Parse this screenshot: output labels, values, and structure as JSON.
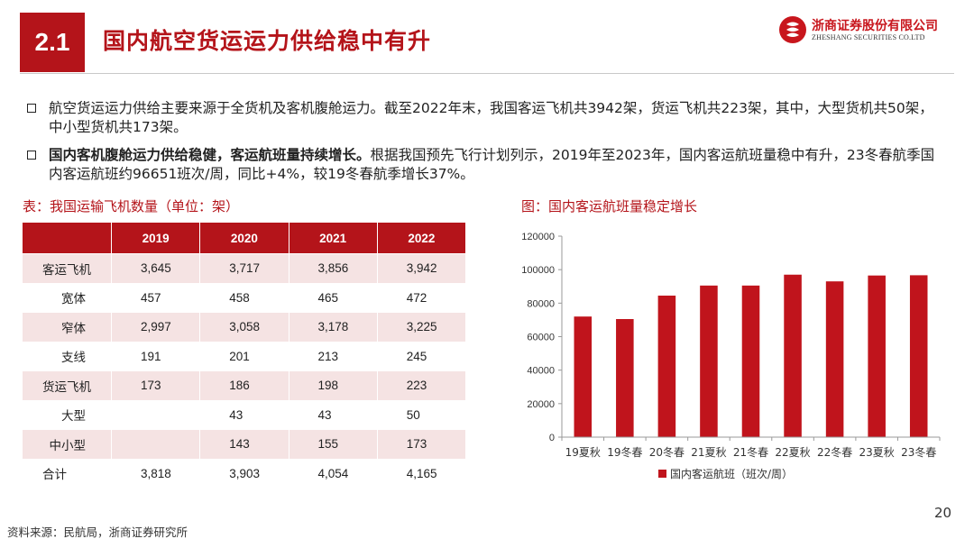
{
  "section_number": "2.1",
  "title": "国内航空货运运力供给稳中有升",
  "logo": {
    "cn": "浙商证券股份有限公司",
    "en": "ZHESHANG SECURITIES CO.LTD"
  },
  "bullets": [
    {
      "bold": "",
      "text": "航空货运运力供给主要来源于全货机及客机腹舱运力。截至2022年末，我国客运飞机共3942架，货运飞机共223架，其中，大型货机共50架，中小型货机共173架。"
    },
    {
      "bold": "国内客机腹舱运力供给稳健，客运航班量持续增长。",
      "text": "根据我国预先飞行计划列示，2019年至2023年，国内客运航班量稳中有升，23冬春航季国内客运航班约96651班次/周，同比+4%，较19冬春航季增长37%。"
    }
  ],
  "table": {
    "caption": "表：我国运输飞机数量（单位：架）",
    "headers": [
      "",
      "2019",
      "2020",
      "2021",
      "2022"
    ],
    "rows": [
      {
        "label": "客运飞机",
        "type": "main",
        "values": [
          "3,645",
          "3,717",
          "3,856",
          "3,942"
        ]
      },
      {
        "label": "宽体",
        "type": "sub",
        "values": [
          "457",
          "458",
          "465",
          "472"
        ]
      },
      {
        "label": "窄体",
        "type": "sub",
        "values": [
          "2,997",
          "3,058",
          "3,178",
          "3,225"
        ]
      },
      {
        "label": "支线",
        "type": "sub",
        "values": [
          "191",
          "201",
          "213",
          "245"
        ]
      },
      {
        "label": "货运飞机",
        "type": "main",
        "values": [
          "173",
          "186",
          "198",
          "223"
        ]
      },
      {
        "label": "大型",
        "type": "sub",
        "values": [
          "",
          "43",
          "43",
          "50"
        ]
      },
      {
        "label": "中小型",
        "type": "sub",
        "values": [
          "",
          "143",
          "155",
          "173"
        ]
      },
      {
        "label": "合计",
        "type": "main",
        "values": [
          "3,818",
          "3,903",
          "4,054",
          "4,165"
        ]
      }
    ]
  },
  "chart_caption": "图：国内客运航班量稳定增长",
  "chart_data": {
    "type": "bar",
    "categories": [
      "19夏秋",
      "19冬春",
      "20冬春",
      "21夏秋",
      "21冬春",
      "22夏秋",
      "22冬春",
      "23夏秋",
      "23冬春"
    ],
    "series": [
      {
        "name": "国内客运航班（班次/周）",
        "values": [
          72000,
          70500,
          84500,
          90500,
          90500,
          97000,
          93000,
          96500,
          96651
        ]
      }
    ],
    "ylim": [
      0,
      120000
    ],
    "yticks": [
      "0",
      "20000",
      "40000",
      "60000",
      "80000",
      "100000",
      "120000"
    ],
    "grid": false,
    "legend": "bottom",
    "color": "#c0141c"
  },
  "footer": "资料来源：民航局，浙商证券研究所",
  "page_number": "20"
}
